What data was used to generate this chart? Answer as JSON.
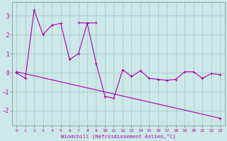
{
  "xlabel": "Windchill (Refroidissement éolien,°C)",
  "background_color": "#cce8e8",
  "line_color": "#aa00aa",
  "grid_color": "#aacccc",
  "xlim": [
    -0.5,
    23.5
  ],
  "ylim": [
    -2.8,
    3.7
  ],
  "xticks": [
    0,
    1,
    2,
    3,
    4,
    5,
    6,
    7,
    8,
    9,
    10,
    11,
    12,
    13,
    14,
    15,
    16,
    17,
    18,
    19,
    20,
    21,
    22,
    23
  ],
  "yticks": [
    -2,
    -1,
    0,
    1,
    2,
    3
  ],
  "line1_x": [
    0,
    1,
    2,
    3,
    4,
    5,
    6,
    7,
    8,
    9,
    10,
    11,
    12,
    13,
    14,
    15,
    16,
    17,
    18,
    19,
    20,
    21,
    22,
    23
  ],
  "line1_y": [
    0.0,
    -0.3,
    3.3,
    2.0,
    2.5,
    2.6,
    0.7,
    1.0,
    2.6,
    0.5,
    -1.25,
    -1.35,
    0.15,
    -0.2,
    0.1,
    -0.3,
    -0.35,
    -0.4,
    -0.35,
    0.05,
    0.05,
    -0.3,
    -0.05,
    -0.1
  ],
  "line2_x": [
    0,
    23
  ],
  "line2_y": [
    0.05,
    -2.4
  ],
  "line3_x": [
    7,
    9
  ],
  "line3_y": [
    2.65,
    2.65
  ]
}
